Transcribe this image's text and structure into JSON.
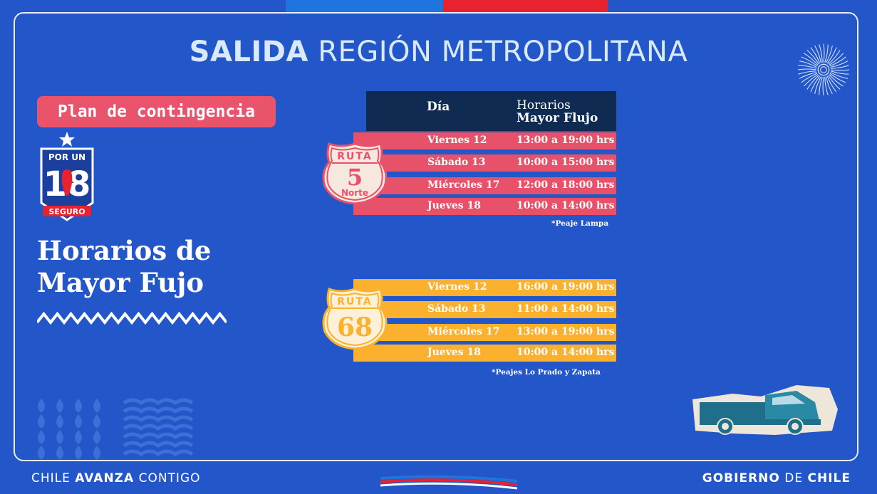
{
  "header": {
    "title_bold": "SALIDA",
    "title_rest": "REGIÓN METROPOLITANA"
  },
  "left": {
    "plan_label": "Plan de contingencia",
    "badge": {
      "top": "POR UN",
      "number": "18",
      "bottom": "SEGURO"
    },
    "heading_line1": "Horarios de",
    "heading_line2": "Mayor Fujo"
  },
  "table": {
    "col_day": "Día",
    "col_hours_line1": "Horarios",
    "col_hours_line2": "Mayor Flujo"
  },
  "routes": [
    {
      "shield_top": "RUTA",
      "shield_number": "5",
      "shield_bottom": "Norte",
      "color": "#e7526a",
      "rows": [
        {
          "day": "Viernes 12",
          "hours": "13:00 a 19:00 hrs"
        },
        {
          "day": "Sábado 13",
          "hours": "10:00 a 15:00 hrs"
        },
        {
          "day": "Miércoles 17",
          "hours": "12:00 a 18:00 hrs"
        },
        {
          "day": "Jueves 18",
          "hours": "10:00 a 14:00 hrs"
        }
      ],
      "note": "*Peaje Lampa"
    },
    {
      "shield_top": "RUTA",
      "shield_number": "68",
      "shield_bottom": "",
      "color": "#fbb12e",
      "rows": [
        {
          "day": "Viernes 12",
          "hours": "16:00 a 19:00 hrs"
        },
        {
          "day": "Sábado 13",
          "hours": "11:00 a 14:00 hrs"
        },
        {
          "day": "Miércoles 17",
          "hours": "13:00 a 19:00 hrs"
        },
        {
          "day": "Jueves 18",
          "hours": "10:00 a 14:00 hrs"
        }
      ],
      "note": "*Peajes Lo Prado y Zapata"
    }
  ],
  "footer": {
    "left_1": "CHILE",
    "left_2": "AVANZA",
    "left_3": "CONTIGO",
    "right_1": "GOBIERNO",
    "right_2": "DE",
    "right_3": "CHILE"
  },
  "colors": {
    "background": "#2356c8",
    "accent_red": "#e7526a",
    "accent_yellow": "#fbb12e",
    "table_header": "#0f2b52"
  }
}
